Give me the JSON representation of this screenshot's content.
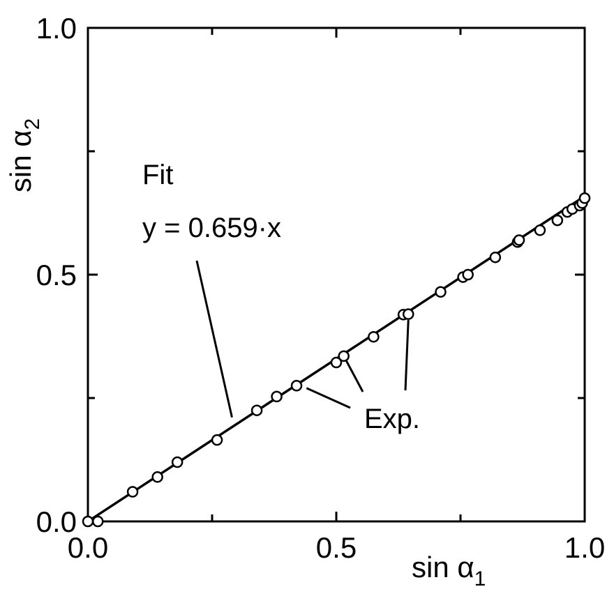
{
  "chart_data": {
    "type": "scatter",
    "x_label": "sin α",
    "x_label_sub": "1",
    "y_label": "sin α",
    "y_label_sub": "2",
    "xlim": [
      0.0,
      1.0
    ],
    "ylim": [
      0.0,
      1.0
    ],
    "x_ticks": [
      "0.0",
      "0.5",
      "1.0"
    ],
    "y_ticks": [
      "0.0",
      "0.5",
      "1.0"
    ],
    "grid": false,
    "series": [
      {
        "name": "Exp.",
        "marker": "open-circle",
        "points": [
          [
            0.0,
            0.0
          ],
          [
            0.02,
            0.0
          ],
          [
            0.09,
            0.06
          ],
          [
            0.14,
            0.09
          ],
          [
            0.18,
            0.12
          ],
          [
            0.26,
            0.165
          ],
          [
            0.34,
            0.225
          ],
          [
            0.38,
            0.253
          ],
          [
            0.42,
            0.275
          ],
          [
            0.5,
            0.322
          ],
          [
            0.515,
            0.335
          ],
          [
            0.575,
            0.374
          ],
          [
            0.635,
            0.419
          ],
          [
            0.645,
            0.42
          ],
          [
            0.71,
            0.465
          ],
          [
            0.755,
            0.495
          ],
          [
            0.765,
            0.5
          ],
          [
            0.82,
            0.535
          ],
          [
            0.865,
            0.566
          ],
          [
            0.868,
            0.57
          ],
          [
            0.91,
            0.59
          ],
          [
            0.945,
            0.61
          ],
          [
            0.965,
            0.627
          ],
          [
            0.975,
            0.633
          ],
          [
            0.99,
            0.64
          ],
          [
            0.995,
            0.645
          ],
          [
            1.0,
            0.655
          ]
        ]
      },
      {
        "name": "Fit",
        "type": "line",
        "slope": 0.659,
        "x_range": [
          0.0,
          1.0
        ]
      }
    ],
    "annotations": [
      {
        "text": "Fit"
      },
      {
        "text": "y = 0.659·x"
      },
      {
        "text": "Exp."
      }
    ]
  }
}
